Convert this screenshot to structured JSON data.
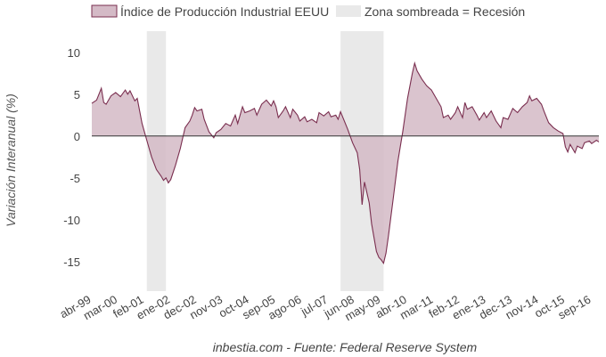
{
  "chart_data": {
    "type": "area",
    "title": "",
    "ylabel": "Variación Interanual (%)",
    "xlabel": "",
    "source": "inbestia.com - Fuente: Federal Reserve System",
    "ylim": [
      -18,
      12
    ],
    "yticks": [
      10,
      5,
      0,
      -5,
      -10,
      -15
    ],
    "x_range": [
      "1999-04",
      "2016-12"
    ],
    "x_tick_labels": [
      {
        "label": "abr-99",
        "date": "1999-04"
      },
      {
        "label": "mar-00",
        "date": "2000-03"
      },
      {
        "label": "feb-01",
        "date": "2001-02"
      },
      {
        "label": "ene-02",
        "date": "2002-01"
      },
      {
        "label": "dec-02",
        "date": "2002-12"
      },
      {
        "label": "nov-03",
        "date": "2003-11"
      },
      {
        "label": "oct-04",
        "date": "2004-10"
      },
      {
        "label": "sep-05",
        "date": "2005-09"
      },
      {
        "label": "ago-06",
        "date": "2006-08"
      },
      {
        "label": "jul-07",
        "date": "2007-07"
      },
      {
        "label": "jun-08",
        "date": "2008-06"
      },
      {
        "label": "may-09",
        "date": "2009-05"
      },
      {
        "label": "abr-10",
        "date": "2010-04"
      },
      {
        "label": "mar-11",
        "date": "2011-03"
      },
      {
        "label": "feb-12",
        "date": "2012-02"
      },
      {
        "label": "ene-13",
        "date": "2013-01"
      },
      {
        "label": "dec-13",
        "date": "2013-12"
      },
      {
        "label": "nov-14",
        "date": "2014-11"
      },
      {
        "label": "oct-15",
        "date": "2015-10"
      },
      {
        "label": "sep-16",
        "date": "2016-09"
      }
    ],
    "legend": [
      {
        "label": "Índice de Producción Industrial EEUU",
        "color": "#d4bac6",
        "stroke": "#7a2e4f"
      },
      {
        "label": "Zona sombreada = Recesión",
        "color": "#e9e9e9"
      }
    ],
    "recessions": [
      {
        "start": "2001-03",
        "end": "2001-11"
      },
      {
        "start": "2007-12",
        "end": "2009-06"
      }
    ],
    "series": [
      {
        "name": "Índice de Producción Industrial EEUU",
        "color": "#7a2e4f",
        "fill": "#d4bac6",
        "points": [
          [
            "1999-04",
            3.9
          ],
          [
            "1999-06",
            4.3
          ],
          [
            "1999-08",
            5.7
          ],
          [
            "1999-09",
            4.0
          ],
          [
            "1999-10",
            3.8
          ],
          [
            "1999-12",
            4.8
          ],
          [
            "2000-02",
            5.2
          ],
          [
            "2000-04",
            4.7
          ],
          [
            "2000-06",
            5.5
          ],
          [
            "2000-07",
            5.0
          ],
          [
            "2000-08",
            5.4
          ],
          [
            "2000-10",
            4.2
          ],
          [
            "2000-11",
            4.5
          ],
          [
            "2000-12",
            3.0
          ],
          [
            "2001-01",
            1.5
          ],
          [
            "2001-03",
            -0.5
          ],
          [
            "2001-05",
            -2.5
          ],
          [
            "2001-07",
            -4.0
          ],
          [
            "2001-09",
            -4.8
          ],
          [
            "2001-10",
            -5.3
          ],
          [
            "2001-11",
            -5.0
          ],
          [
            "2001-12",
            -5.6
          ],
          [
            "2002-01",
            -5.2
          ],
          [
            "2002-03",
            -3.5
          ],
          [
            "2002-05",
            -1.5
          ],
          [
            "2002-07",
            1.0
          ],
          [
            "2002-09",
            1.8
          ],
          [
            "2002-10",
            2.5
          ],
          [
            "2002-11",
            3.4
          ],
          [
            "2002-12",
            3.0
          ],
          [
            "2003-02",
            3.2
          ],
          [
            "2003-03",
            2.0
          ],
          [
            "2003-05",
            0.5
          ],
          [
            "2003-07",
            -0.2
          ],
          [
            "2003-08",
            0.4
          ],
          [
            "2003-10",
            0.8
          ],
          [
            "2003-12",
            1.5
          ],
          [
            "2004-02",
            1.2
          ],
          [
            "2004-04",
            2.5
          ],
          [
            "2004-05",
            1.5
          ],
          [
            "2004-07",
            3.5
          ],
          [
            "2004-08",
            2.8
          ],
          [
            "2004-10",
            3.0
          ],
          [
            "2004-12",
            3.3
          ],
          [
            "2005-01",
            2.5
          ],
          [
            "2005-03",
            3.8
          ],
          [
            "2005-05",
            4.3
          ],
          [
            "2005-07",
            3.6
          ],
          [
            "2005-08",
            4.2
          ],
          [
            "2005-09",
            3.5
          ],
          [
            "2005-10",
            2.2
          ],
          [
            "2005-12",
            3.0
          ],
          [
            "2006-01",
            3.5
          ],
          [
            "2006-03",
            2.2
          ],
          [
            "2006-04",
            3.2
          ],
          [
            "2006-06",
            2.5
          ],
          [
            "2006-07",
            1.8
          ],
          [
            "2006-09",
            2.3
          ],
          [
            "2006-10",
            1.7
          ],
          [
            "2006-12",
            2.0
          ],
          [
            "2007-02",
            1.6
          ],
          [
            "2007-03",
            2.8
          ],
          [
            "2007-05",
            2.4
          ],
          [
            "2007-07",
            2.9
          ],
          [
            "2007-08",
            2.3
          ],
          [
            "2007-10",
            2.5
          ],
          [
            "2007-11",
            2.0
          ],
          [
            "2007-12",
            2.9
          ],
          [
            "2008-01",
            2.2
          ],
          [
            "2008-03",
            0.8
          ],
          [
            "2008-05",
            -0.8
          ],
          [
            "2008-07",
            -2.0
          ],
          [
            "2008-08",
            -4.0
          ],
          [
            "2008-09",
            -8.2
          ],
          [
            "2008-10",
            -5.5
          ],
          [
            "2008-12",
            -8.0
          ],
          [
            "2009-01",
            -10.5
          ],
          [
            "2009-03",
            -13.8
          ],
          [
            "2009-04",
            -14.5
          ],
          [
            "2009-05",
            -14.8
          ],
          [
            "2009-06",
            -15.2
          ],
          [
            "2009-07",
            -14.0
          ],
          [
            "2009-08",
            -12.0
          ],
          [
            "2009-10",
            -7.5
          ],
          [
            "2009-12",
            -3.0
          ],
          [
            "2010-02",
            0.5
          ],
          [
            "2010-04",
            4.5
          ],
          [
            "2010-06",
            7.5
          ],
          [
            "2010-07",
            8.7
          ],
          [
            "2010-08",
            7.8
          ],
          [
            "2010-10",
            6.8
          ],
          [
            "2010-12",
            6.0
          ],
          [
            "2011-02",
            5.5
          ],
          [
            "2011-04",
            4.5
          ],
          [
            "2011-06",
            3.5
          ],
          [
            "2011-07",
            2.2
          ],
          [
            "2011-09",
            2.5
          ],
          [
            "2011-10",
            2.0
          ],
          [
            "2011-12",
            2.8
          ],
          [
            "2012-01",
            3.5
          ],
          [
            "2012-03",
            2.2
          ],
          [
            "2012-04",
            4.0
          ],
          [
            "2012-05",
            3.2
          ],
          [
            "2012-07",
            3.5
          ],
          [
            "2012-09",
            2.5
          ],
          [
            "2012-10",
            1.9
          ],
          [
            "2012-12",
            2.8
          ],
          [
            "2013-01",
            2.2
          ],
          [
            "2013-03",
            3.0
          ],
          [
            "2013-05",
            1.8
          ],
          [
            "2013-07",
            1.0
          ],
          [
            "2013-08",
            2.2
          ],
          [
            "2013-10",
            2.0
          ],
          [
            "2013-12",
            3.3
          ],
          [
            "2014-02",
            2.8
          ],
          [
            "2014-04",
            3.5
          ],
          [
            "2014-06",
            4.0
          ],
          [
            "2014-07",
            4.8
          ],
          [
            "2014-08",
            4.2
          ],
          [
            "2014-10",
            4.5
          ],
          [
            "2014-12",
            3.8
          ],
          [
            "2015-01",
            3.0
          ],
          [
            "2015-03",
            1.6
          ],
          [
            "2015-05",
            1.0
          ],
          [
            "2015-07",
            0.6
          ],
          [
            "2015-09",
            0.3
          ],
          [
            "2015-10",
            -1.3
          ],
          [
            "2015-11",
            -1.9
          ],
          [
            "2015-12",
            -1.0
          ],
          [
            "2016-02",
            -2.0
          ],
          [
            "2016-03",
            -1.2
          ],
          [
            "2016-05",
            -1.5
          ],
          [
            "2016-06",
            -0.8
          ],
          [
            "2016-08",
            -0.6
          ],
          [
            "2016-09",
            -0.9
          ],
          [
            "2016-11",
            -0.5
          ],
          [
            "2016-12",
            -0.7
          ]
        ]
      }
    ]
  }
}
